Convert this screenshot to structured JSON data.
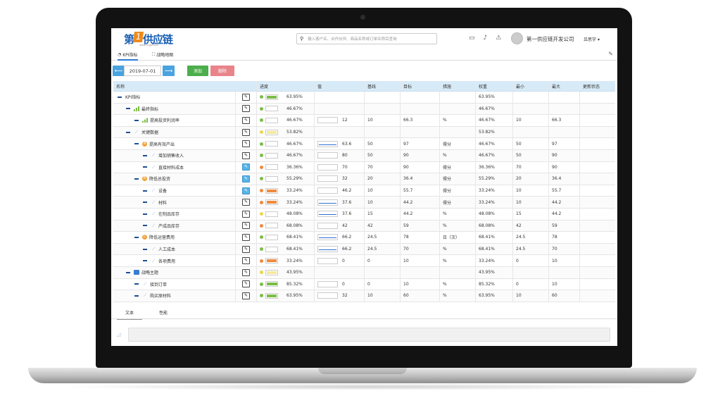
{
  "brand": {
    "logo_text": "第",
    "logo_badge": "1",
    "logo_text2": "供应链",
    "logo_url": "www.51gyl.com"
  },
  "header": {
    "search_placeholder": "输入客户名、合作伙伴、商品名称或订单名称后查询",
    "company": "第一供应链开发公司",
    "user": "吕思宇"
  },
  "tabs": [
    {
      "label": "KPI指标"
    },
    {
      "label": "战略地图"
    }
  ],
  "toolbar": {
    "date": "2019-07-01",
    "add_label": "添加",
    "delete_label": "删除",
    "prev": "⟵",
    "next": "⟶"
  },
  "table": {
    "headers": [
      "名称",
      "",
      "进度",
      "值",
      "基线",
      "目标",
      "措施",
      "权重",
      "最小",
      "最大",
      "更新状态"
    ],
    "rows": [
      {
        "level": 0,
        "icon": "none",
        "name": "KPI指标",
        "edit": "normal",
        "dot": "#7bbd46",
        "pfill": "#7bbd46",
        "pw": 0.85,
        "progress": "63.95%",
        "value": "",
        "vline": false,
        "baseline": "",
        "target": "",
        "measure": "",
        "weight": "63.95%",
        "min": "",
        "max": ""
      },
      {
        "level": 1,
        "icon": "bars",
        "name": "最终指标",
        "edit": "normal",
        "dot": "#7bbd46",
        "pfill": "",
        "pw": 0,
        "progress": "46.67%",
        "value": "",
        "vline": false,
        "baseline": "",
        "target": "",
        "measure": "",
        "weight": "46.67%",
        "min": "",
        "max": ""
      },
      {
        "level": 2,
        "icon": "bars",
        "name": "提高投资利润率",
        "edit": "normal",
        "dot": "#7bbd46",
        "pfill": "",
        "pw": 0,
        "progress": "46.67%",
        "value": "12",
        "vline": false,
        "baseline": "10",
        "target": "66.3",
        "measure": "%",
        "weight": "46.67%",
        "min": "10",
        "max": "66.3"
      },
      {
        "level": 1,
        "icon": "trend",
        "name": "关键数据",
        "edit": "normal",
        "dot": "#e8d84a",
        "pfill": "#f3ea9c",
        "pw": 0.9,
        "progress": "53.82%",
        "value": "",
        "vline": false,
        "baseline": "",
        "target": "",
        "measure": "",
        "weight": "53.82%",
        "min": "",
        "max": ""
      },
      {
        "level": 2,
        "icon": "circle-a",
        "name": "提高有效产出",
        "edit": "normal",
        "dot": "#7bbd46",
        "pfill": "",
        "pw": 0,
        "progress": "46.67%",
        "value": "63.6",
        "vline": true,
        "baseline": "50",
        "target": "97",
        "measure": "得分",
        "weight": "46.67%",
        "min": "50",
        "max": "97"
      },
      {
        "level": 3,
        "icon": "trend",
        "name": "增加销售收入",
        "edit": "normal",
        "dot": "#7bbd46",
        "pfill": "",
        "pw": 0,
        "progress": "46.67%",
        "value": "80",
        "vline": false,
        "baseline": "50",
        "target": "90",
        "measure": "%",
        "weight": "46.67%",
        "min": "50",
        "max": "90"
      },
      {
        "level": 3,
        "icon": "trend",
        "name": "直接材料成本",
        "edit": "blue",
        "dot": "#f08a3c",
        "pfill": "",
        "pw": 0,
        "progress": "36.36%",
        "value": "70",
        "vline": false,
        "baseline": "70",
        "target": "90",
        "measure": "得分",
        "weight": "36.36%",
        "min": "70",
        "max": "90"
      },
      {
        "level": 2,
        "icon": "circle-b",
        "name": "降低总投资",
        "edit": "blue",
        "dot": "#7bbd46",
        "pfill": "",
        "pw": 0,
        "progress": "55.29%",
        "value": "32",
        "vline": false,
        "baseline": "20",
        "target": "36.4",
        "measure": "得分",
        "weight": "55.29%",
        "min": "20",
        "max": "36.4"
      },
      {
        "level": 3,
        "icon": "trend",
        "name": "设备",
        "edit": "blue",
        "dot": "#f08a3c",
        "pfill": "#f08a3c",
        "pw": 0.9,
        "progress": "33.24%",
        "value": "46.2",
        "vline": false,
        "baseline": "10",
        "target": "55.7",
        "measure": "得分",
        "weight": "33.24%",
        "min": "10",
        "max": "55.7"
      },
      {
        "level": 3,
        "icon": "trend",
        "name": "材料",
        "edit": "normal",
        "dot": "#f08a3c",
        "pfill": "#f08a3c",
        "pw": 0.9,
        "progress": "33.24%",
        "value": "37.6",
        "vline": true,
        "baseline": "10",
        "target": "44.2",
        "measure": "得分",
        "weight": "33.24%",
        "min": "10",
        "max": "44.2"
      },
      {
        "level": 3,
        "icon": "trend",
        "name": "在制品库存",
        "edit": "normal",
        "dot": "#e8d84a",
        "pfill": "",
        "pw": 0,
        "progress": "48.08%",
        "value": "37.6",
        "vline": true,
        "baseline": "15",
        "target": "44.2",
        "measure": "%",
        "weight": "48.08%",
        "min": "15",
        "max": "44.2"
      },
      {
        "level": 3,
        "icon": "trend",
        "name": "产成品库存",
        "edit": "normal",
        "dot": "#f08a3c",
        "pfill": "",
        "pw": 0,
        "progress": "68.08%",
        "value": "42",
        "vline": false,
        "baseline": "42",
        "target": "59",
        "measure": "%",
        "weight": "68.08%",
        "min": "42",
        "max": "59"
      },
      {
        "level": 2,
        "icon": "circle-c",
        "name": "降低运营费用",
        "edit": "normal",
        "dot": "#7bbd46",
        "pfill": "",
        "pw": 0,
        "progress": "68.41%",
        "value": "66.2",
        "vline": true,
        "baseline": "24.5",
        "target": "78",
        "measure": "日（次）",
        "weight": "68.41%",
        "min": "24.5",
        "max": "78"
      },
      {
        "level": 3,
        "icon": "trend",
        "name": "人工成本",
        "edit": "normal",
        "dot": "#7bbd46",
        "pfill": "",
        "pw": 0,
        "progress": "68.41%",
        "value": "66.2",
        "vline": true,
        "baseline": "24.5",
        "target": "70",
        "measure": "%",
        "weight": "68.41%",
        "min": "24.5",
        "max": "70"
      },
      {
        "level": 3,
        "icon": "trend",
        "name": "各项费用",
        "edit": "normal",
        "dot": "#f08a3c",
        "pfill": "#f08a3c",
        "pw": 0.9,
        "progress": "33.24%",
        "value": "0",
        "vline": false,
        "baseline": "0",
        "target": "10",
        "measure": "%",
        "weight": "33.24%",
        "min": "0",
        "max": "10"
      },
      {
        "level": 1,
        "icon": "folder",
        "name": "战略主题",
        "edit": "normal",
        "dot": "#e8d84a",
        "pfill": "#f3ea9c",
        "pw": 0.9,
        "progress": "43.95%",
        "value": "",
        "vline": false,
        "baseline": "",
        "target": "",
        "measure": "",
        "weight": "43.95%",
        "min": "",
        "max": ""
      },
      {
        "level": 2,
        "icon": "trend",
        "name": "接到订单",
        "edit": "normal",
        "dot": "#7bbd46",
        "pfill": "#7bbd46",
        "pw": 0.95,
        "progress": "85.32%",
        "value": "0",
        "vline": false,
        "baseline": "0",
        "target": "10",
        "measure": "%",
        "weight": "85.32%",
        "min": "0",
        "max": "10"
      },
      {
        "level": 2,
        "icon": "trend",
        "name": "购买原材料",
        "edit": "normal",
        "dot": "#7bbd46",
        "pfill": "#7bbd46",
        "pw": 0.85,
        "progress": "63.95%",
        "value": "32",
        "vline": false,
        "baseline": "10",
        "target": "60",
        "measure": "%",
        "weight": "63.95%",
        "min": "10",
        "max": "60"
      }
    ]
  },
  "bottom_tabs": [
    {
      "label": "文本"
    },
    {
      "label": "性能"
    }
  ]
}
